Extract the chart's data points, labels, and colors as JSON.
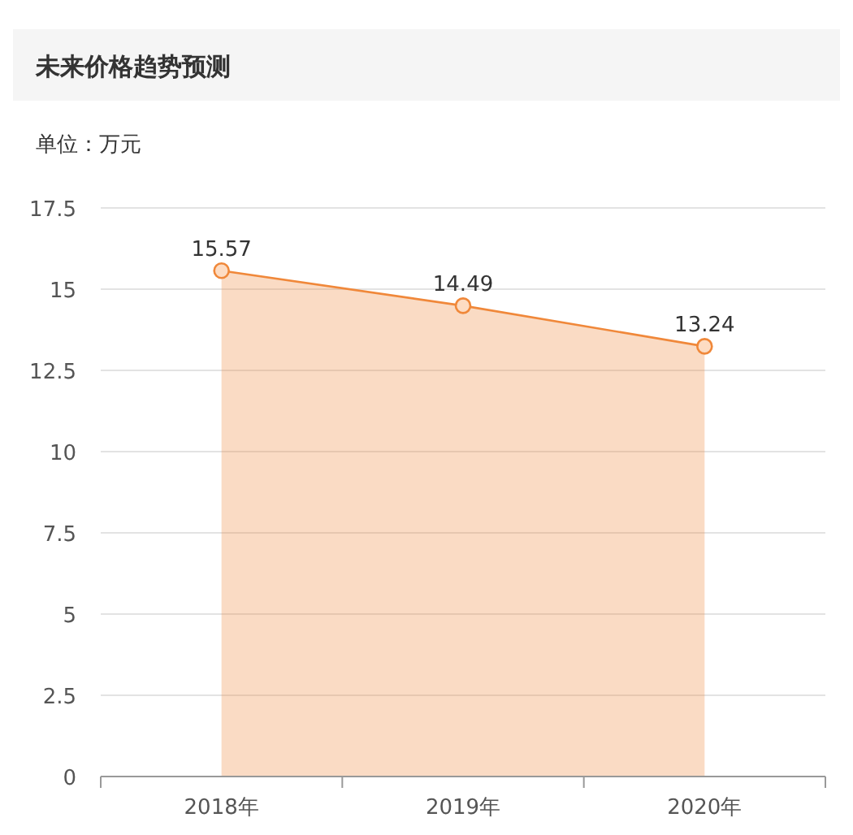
{
  "chart_data": {
    "type": "area",
    "title": "未来价格趋势预测",
    "subtitle": "单位：万元",
    "categories": [
      "2018年",
      "2019年",
      "2020年"
    ],
    "series": [
      {
        "color": "#f0883a",
        "values": [
          15.57,
          14.49,
          13.24
        ]
      }
    ],
    "ylim": [
      0,
      17.5
    ],
    "yticks": [
      0,
      2.5,
      5,
      7.5,
      10,
      12.5,
      15,
      17.5
    ],
    "grid": "y",
    "marker": "circle",
    "data_labels": true
  }
}
